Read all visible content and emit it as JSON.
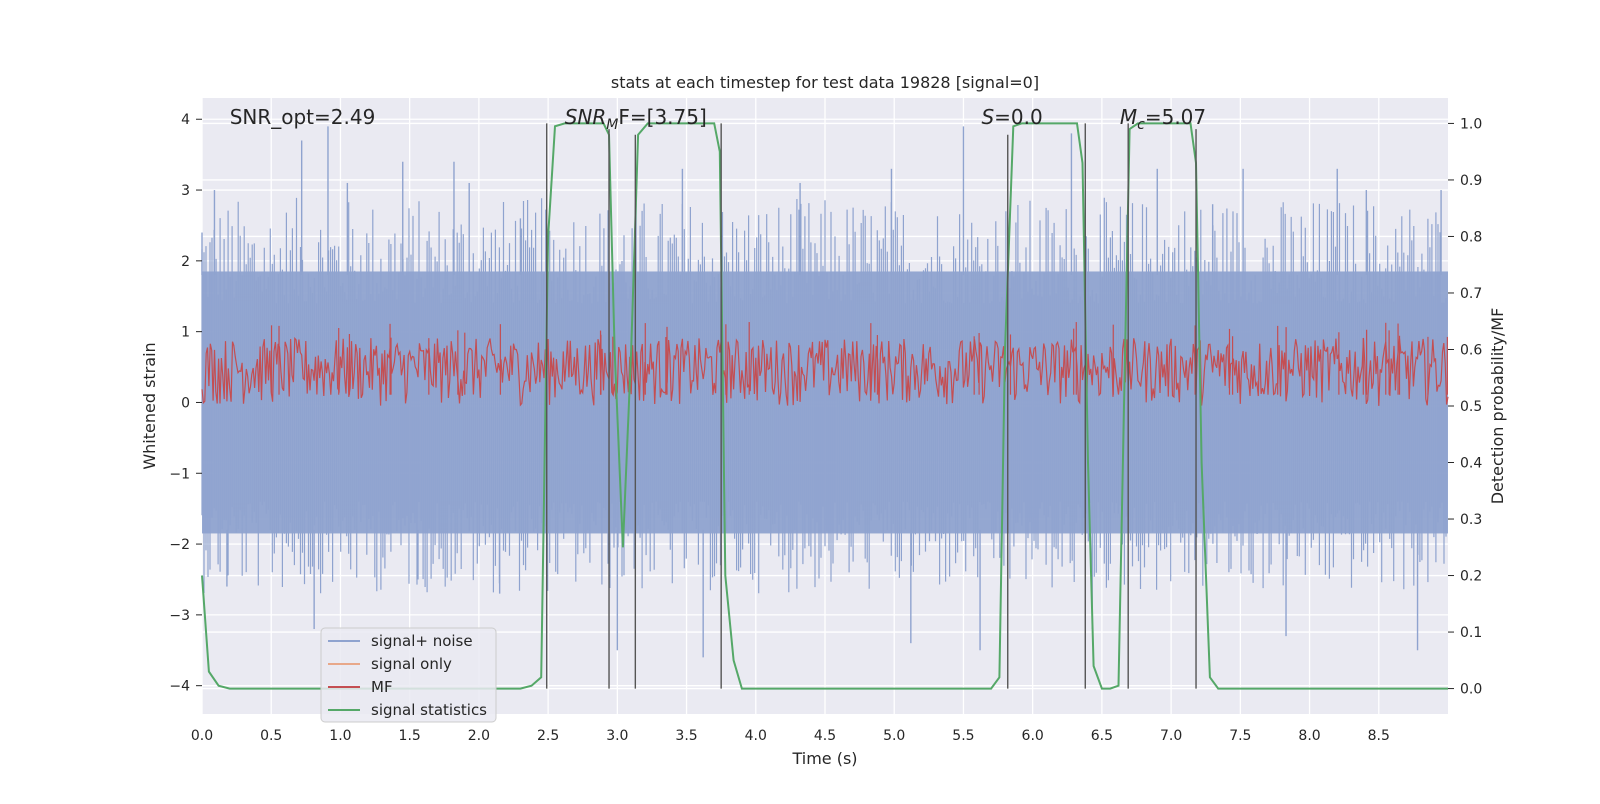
{
  "chart_data": {
    "type": "line",
    "title": "stats at each timestep for test data 19828 [signal=0]",
    "xlabel": "Time (s)",
    "ylabel": "Whitened strain",
    "y2label": "Detection probability/MF",
    "xlim": [
      0,
      9
    ],
    "ylim": [
      -4.4,
      4.3
    ],
    "y2lim": [
      -0.045,
      1.045
    ],
    "xticks": [
      0.0,
      0.5,
      1.0,
      1.5,
      2.0,
      2.5,
      3.0,
      3.5,
      4.0,
      4.5,
      5.0,
      5.5,
      6.0,
      6.5,
      7.0,
      7.5,
      8.0,
      8.5
    ],
    "xtick_labels": [
      "0.0",
      "0.5",
      "1.0",
      "1.5",
      "2.0",
      "2.5",
      "3.0",
      "3.5",
      "4.0",
      "4.5",
      "5.0",
      "5.5",
      "6.0",
      "6.5",
      "7.0",
      "7.5",
      "8.0",
      "8.5"
    ],
    "yticks": [
      4,
      3,
      2,
      1,
      0,
      -1,
      -2,
      -3,
      -4
    ],
    "ytick_labels": [
      "4",
      "3",
      "2",
      "1",
      "0",
      "−1",
      "−2",
      "−3",
      "−4"
    ],
    "y2ticks": [
      1.0,
      0.9,
      0.8,
      0.7,
      0.6,
      0.5,
      0.4,
      0.3,
      0.2,
      0.1,
      0.0
    ],
    "y2tick_labels": [
      "1.0",
      "0.9",
      "0.8",
      "0.7",
      "0.6",
      "0.5",
      "0.4",
      "0.3",
      "0.2",
      "0.1",
      "0.0"
    ],
    "grid": true,
    "legend_position": "lower-left",
    "annotations": [
      {
        "text": "SNR_opt=2.49",
        "x": 0.2
      },
      {
        "main": "SNR",
        "sub": "M",
        "rest": "F=[3.75]",
        "x": 2.62
      },
      {
        "main": "S",
        "rest": "=0.0",
        "x": 5.63
      },
      {
        "main": "M",
        "sub": "c",
        "rest": "=5.07",
        "x": 6.63
      }
    ],
    "series": [
      {
        "name": "signal+ noise",
        "color": "#8fa3cf",
        "axis": "left",
        "kind": "noise",
        "dense_range": [
          -1.85,
          1.85
        ],
        "peaks": [
          [
            0.0,
            2.4
          ],
          [
            0.09,
            3.0
          ],
          [
            0.18,
            -2.6
          ],
          [
            0.72,
            3.7
          ],
          [
            0.81,
            -3.2
          ],
          [
            0.91,
            3.9
          ],
          [
            1.05,
            3.1
          ],
          [
            1.45,
            3.4
          ],
          [
            1.56,
            -2.5
          ],
          [
            1.82,
            3.4
          ],
          [
            1.93,
            3.1
          ],
          [
            2.15,
            -2.7
          ],
          [
            2.3,
            2.6
          ],
          [
            3.0,
            -3.5
          ],
          [
            3.47,
            3.3
          ],
          [
            3.62,
            -3.6
          ],
          [
            4.32,
            3.1
          ],
          [
            4.98,
            3.3
          ],
          [
            5.12,
            -3.4
          ],
          [
            5.5,
            3.9
          ],
          [
            5.62,
            -3.5
          ],
          [
            6.28,
            3.8
          ],
          [
            6.43,
            -3.2
          ],
          [
            6.9,
            3.3
          ],
          [
            7.3,
            2.8
          ],
          [
            7.52,
            3.3
          ],
          [
            7.83,
            -3.3
          ],
          [
            8.2,
            3.3
          ],
          [
            8.41,
            3.0
          ],
          [
            8.78,
            -3.5
          ],
          [
            8.95,
            3.0
          ]
        ]
      },
      {
        "name": "signal only",
        "color": "#e8a88a",
        "axis": "left",
        "kind": "none"
      },
      {
        "name": "MF",
        "color": "#c44e52",
        "axis": "right",
        "kind": "band",
        "band": [
          0.5,
          0.62
        ]
      },
      {
        "name": "signal statistics",
        "color": "#55a868",
        "axis": "right",
        "kind": "line",
        "x": [
          0.0,
          0.05,
          0.12,
          0.2,
          0.4,
          2.3,
          2.38,
          2.45,
          2.5,
          2.55,
          2.62,
          2.9,
          2.94,
          2.98,
          3.04,
          3.1,
          3.15,
          3.22,
          3.7,
          3.74,
          3.78,
          3.84,
          3.9,
          5.7,
          5.76,
          5.8,
          5.86,
          5.92,
          6.32,
          6.36,
          6.4,
          6.44,
          6.5,
          6.56,
          6.62,
          6.66,
          6.7,
          6.76,
          7.14,
          7.18,
          7.22,
          7.28,
          7.34,
          9.0
        ],
        "y": [
          0.2,
          0.03,
          0.005,
          0.0,
          0.0,
          0.0,
          0.005,
          0.02,
          0.8,
          0.995,
          1.0,
          1.0,
          0.98,
          0.6,
          0.25,
          0.6,
          0.98,
          1.0,
          1.0,
          0.95,
          0.2,
          0.05,
          0.0,
          0.0,
          0.02,
          0.6,
          0.995,
          1.0,
          1.0,
          0.93,
          0.4,
          0.04,
          0.0,
          0.0,
          0.005,
          0.5,
          0.99,
          1.0,
          1.0,
          0.93,
          0.4,
          0.02,
          0.0,
          0.0
        ]
      }
    ],
    "vlines": [
      {
        "x": 2.49,
        "y_top": 1.0
      },
      {
        "x": 2.94,
        "y_top": 0.99
      },
      {
        "x": 3.13,
        "y_top": 0.98
      },
      {
        "x": 3.75,
        "y_top": 1.0
      },
      {
        "x": 5.82,
        "y_top": 0.98
      },
      {
        "x": 6.38,
        "y_top": 1.0
      },
      {
        "x": 6.69,
        "y_top": 1.0
      },
      {
        "x": 7.18,
        "y_top": 0.99
      }
    ]
  }
}
